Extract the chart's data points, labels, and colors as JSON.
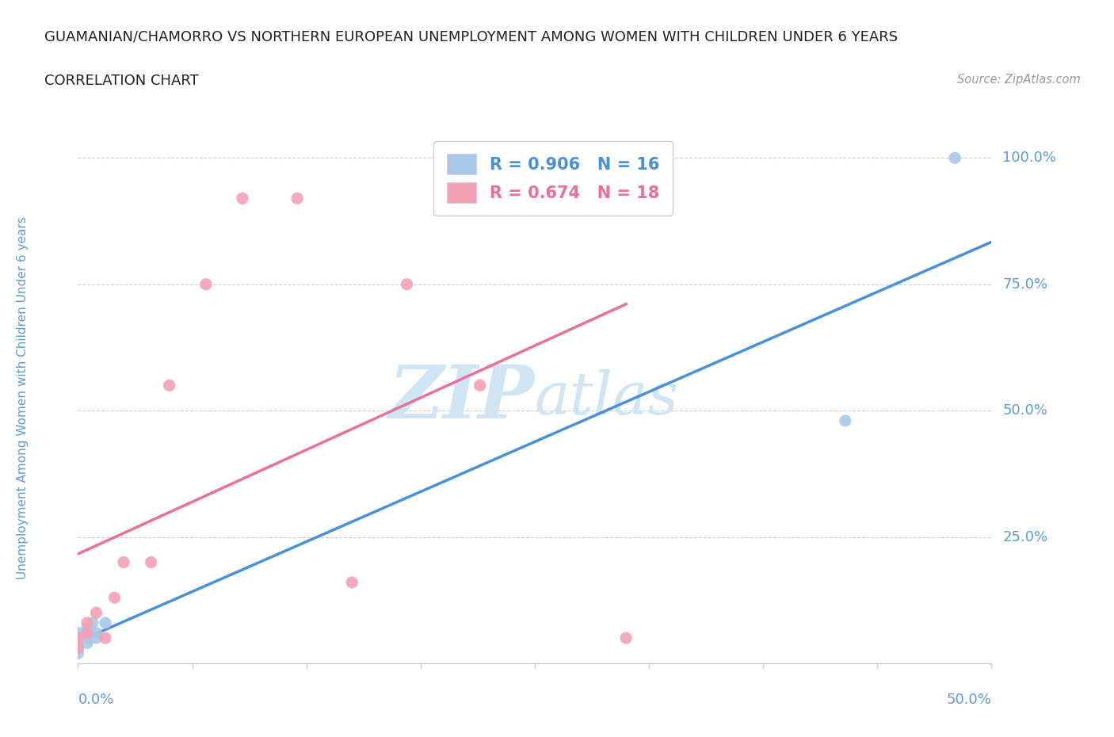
{
  "title": "GUAMANIAN/CHAMORRO VS NORTHERN EUROPEAN UNEMPLOYMENT AMONG WOMEN WITH CHILDREN UNDER 6 YEARS",
  "subtitle": "CORRELATION CHART",
  "source": "Source: ZipAtlas.com",
  "ylabel": "Unemployment Among Women with Children Under 6 years",
  "R1": 0.906,
  "N1": 16,
  "R2": 0.674,
  "N2": 18,
  "color_blue": "#a8c8e8",
  "color_pink": "#f4a0b5",
  "color_blue_line": "#4a90d9",
  "color_pink_line": "#e8709a",
  "color_tick_label": "#5b9bd5",
  "guam_x": [
    0.0,
    0.0,
    0.0,
    0.0,
    0.0,
    0.0,
    0.005,
    0.005,
    0.005,
    0.005,
    0.008,
    0.01,
    0.01,
    0.015,
    0.42,
    0.48
  ],
  "guam_y": [
    0.02,
    0.03,
    0.04,
    0.04,
    0.05,
    0.06,
    0.04,
    0.05,
    0.06,
    0.07,
    0.08,
    0.05,
    0.06,
    0.08,
    0.48,
    1.0
  ],
  "north_eu_x": [
    0.0,
    0.0,
    0.005,
    0.005,
    0.01,
    0.015,
    0.02,
    0.025,
    0.04,
    0.05,
    0.07,
    0.09,
    0.12,
    0.15,
    0.18,
    0.22,
    0.25,
    0.3
  ],
  "north_eu_y": [
    0.03,
    0.05,
    0.06,
    0.08,
    0.1,
    0.05,
    0.13,
    0.2,
    0.2,
    0.55,
    0.75,
    0.92,
    0.92,
    0.16,
    0.75,
    0.55,
    0.9,
    0.05
  ],
  "xlim": [
    0.0,
    0.5
  ],
  "ylim": [
    0.0,
    1.05
  ],
  "yticks": [
    0.25,
    0.5,
    0.75,
    1.0
  ],
  "ytick_labels": [
    "25.0%",
    "50.0%",
    "75.0%",
    "100.0%"
  ],
  "watermark_zip": "ZIP",
  "watermark_atlas": "atlas",
  "watermark_color": "#d0e4f4",
  "background_color": "#ffffff"
}
